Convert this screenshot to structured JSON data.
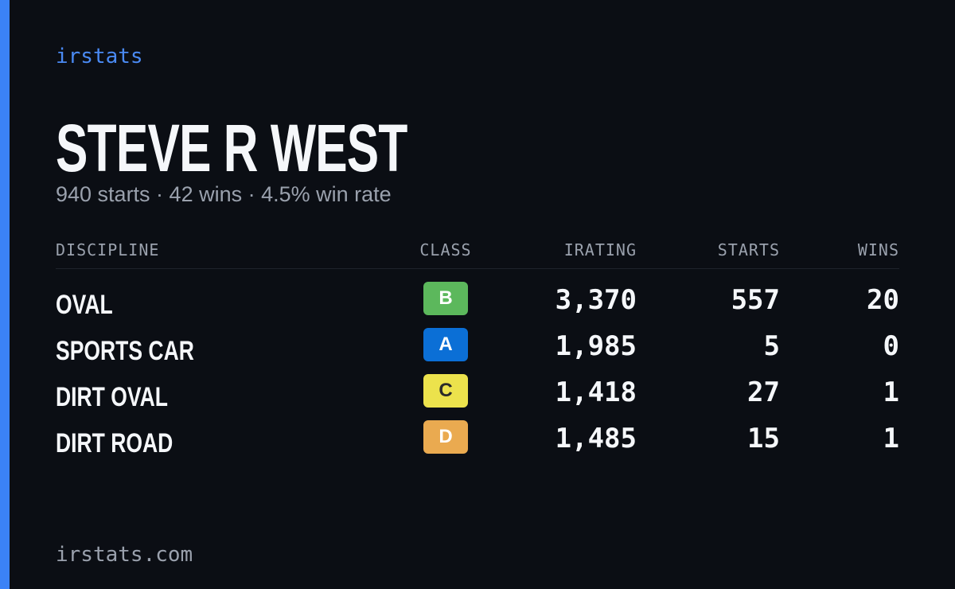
{
  "brand": "irstats",
  "header": {
    "title": "STEVE R WEST",
    "subtitle": "940 starts · 42 wins · 4.5% win rate"
  },
  "table": {
    "columns": [
      "DISCIPLINE",
      "CLASS",
      "IRATING",
      "STARTS",
      "WINS"
    ],
    "rows": [
      {
        "discipline": "OVAL",
        "class": "B",
        "class_color": "#5cb85c",
        "class_text_color": "#ffffff",
        "irating": "3,370",
        "starts": "557",
        "wins": "20"
      },
      {
        "discipline": "SPORTS CAR",
        "class": "A",
        "class_color": "#0b6fd6",
        "class_text_color": "#ffffff",
        "irating": "1,985",
        "starts": "5",
        "wins": "0"
      },
      {
        "discipline": "DIRT OVAL",
        "class": "C",
        "class_color": "#ece24c",
        "class_text_color": "#2a2a2a",
        "irating": "1,418",
        "starts": "27",
        "wins": "1"
      },
      {
        "discipline": "DIRT ROAD",
        "class": "D",
        "class_color": "#eaaa50",
        "class_text_color": "#ffffff",
        "irating": "1,485",
        "starts": "15",
        "wins": "1"
      }
    ]
  },
  "footer": "irstats.com"
}
